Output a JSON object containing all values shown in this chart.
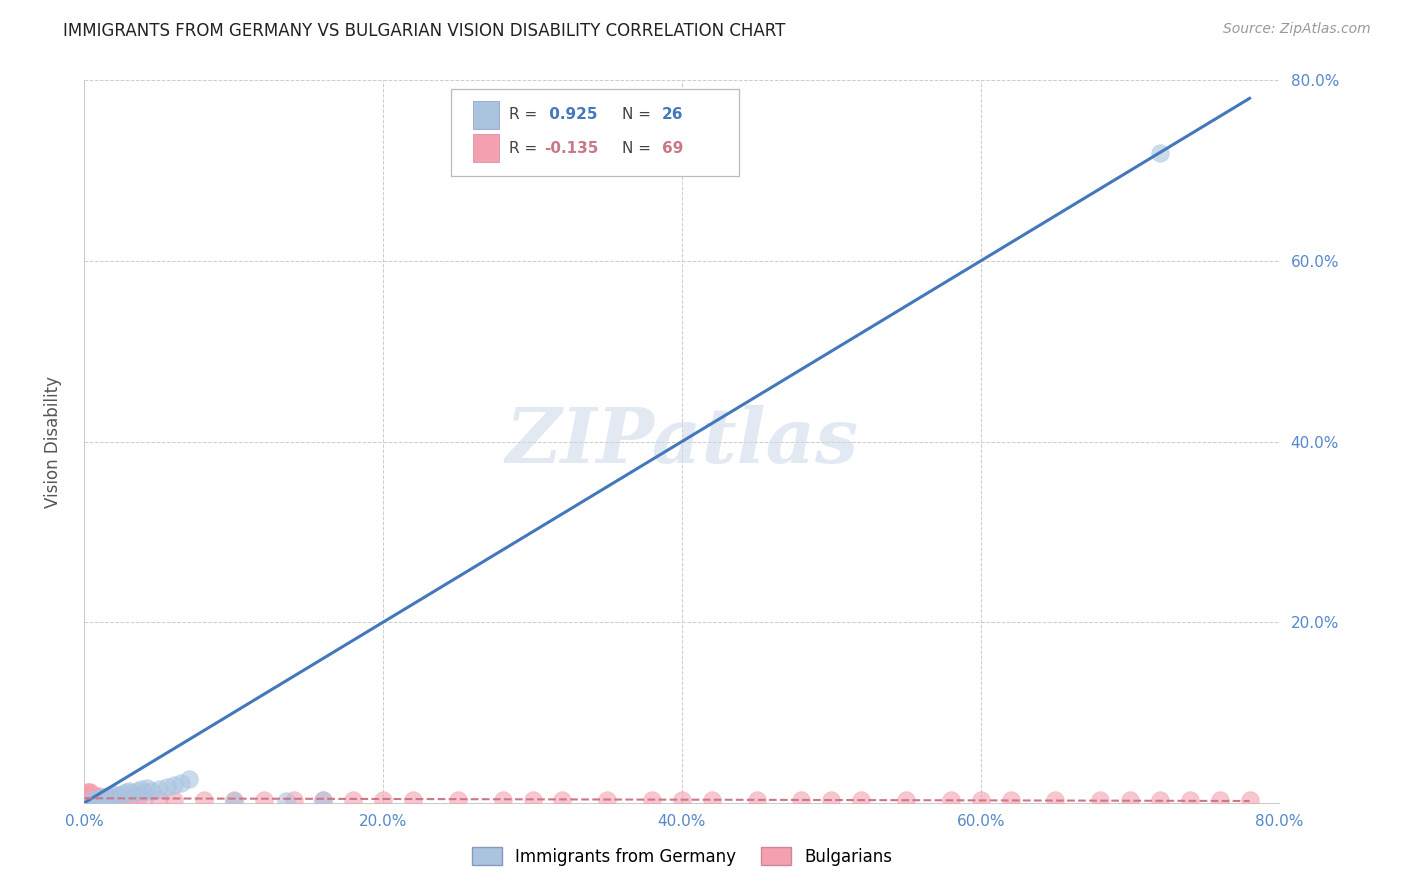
{
  "title": "IMMIGRANTS FROM GERMANY VS BULGARIAN VISION DISABILITY CORRELATION CHART",
  "source": "Source: ZipAtlas.com",
  "ylabel": "Vision Disability",
  "xlim": [
    0.0,
    0.8
  ],
  "ylim": [
    0.0,
    0.8
  ],
  "xticks": [
    0.0,
    0.2,
    0.4,
    0.6,
    0.8
  ],
  "yticks": [
    0.0,
    0.2,
    0.4,
    0.6,
    0.8
  ],
  "xtick_labels": [
    "0.0%",
    "20.0%",
    "40.0%",
    "60.0%",
    "80.0%"
  ],
  "ytick_labels": [
    "",
    "20.0%",
    "40.0%",
    "60.0%",
    "80.0%"
  ],
  "grid_color": "#cccccc",
  "background_color": "#ffffff",
  "blue_color": "#aac4e0",
  "pink_color": "#f4a0b0",
  "trendline_blue": "#4477bb",
  "trendline_pink": "#cc7788",
  "tick_color": "#5588cc",
  "watermark": "ZIPatlas",
  "scatter_blue": [
    [
      0.005,
      0.003
    ],
    [
      0.008,
      0.003
    ],
    [
      0.01,
      0.005
    ],
    [
      0.012,
      0.005
    ],
    [
      0.015,
      0.007
    ],
    [
      0.018,
      0.008
    ],
    [
      0.02,
      0.01
    ],
    [
      0.022,
      0.008
    ],
    [
      0.025,
      0.01
    ],
    [
      0.028,
      0.012
    ],
    [
      0.03,
      0.013
    ],
    [
      0.032,
      0.011
    ],
    [
      0.035,
      0.013
    ],
    [
      0.038,
      0.015
    ],
    [
      0.04,
      0.012
    ],
    [
      0.042,
      0.016
    ],
    [
      0.045,
      0.013
    ],
    [
      0.05,
      0.015
    ],
    [
      0.055,
      0.018
    ],
    [
      0.06,
      0.02
    ],
    [
      0.065,
      0.022
    ],
    [
      0.07,
      0.026
    ],
    [
      0.1,
      0.002
    ],
    [
      0.135,
      0.002
    ],
    [
      0.16,
      0.003
    ],
    [
      0.72,
      0.72
    ]
  ],
  "scatter_pink": [
    [
      0.001,
      0.005
    ],
    [
      0.002,
      0.006
    ],
    [
      0.002,
      0.008
    ],
    [
      0.003,
      0.005
    ],
    [
      0.003,
      0.007
    ],
    [
      0.003,
      0.009
    ],
    [
      0.004,
      0.005
    ],
    [
      0.004,
      0.007
    ],
    [
      0.004,
      0.01
    ],
    [
      0.005,
      0.005
    ],
    [
      0.005,
      0.007
    ],
    [
      0.005,
      0.009
    ],
    [
      0.006,
      0.005
    ],
    [
      0.006,
      0.007
    ],
    [
      0.007,
      0.005
    ],
    [
      0.007,
      0.008
    ],
    [
      0.008,
      0.005
    ],
    [
      0.008,
      0.007
    ],
    [
      0.009,
      0.005
    ],
    [
      0.01,
      0.005
    ],
    [
      0.01,
      0.007
    ],
    [
      0.011,
      0.005
    ],
    [
      0.012,
      0.005
    ],
    [
      0.013,
      0.005
    ],
    [
      0.015,
      0.005
    ],
    [
      0.018,
      0.005
    ],
    [
      0.02,
      0.005
    ],
    [
      0.022,
      0.004
    ],
    [
      0.025,
      0.004
    ],
    [
      0.03,
      0.004
    ],
    [
      0.035,
      0.004
    ],
    [
      0.04,
      0.004
    ],
    [
      0.05,
      0.004
    ],
    [
      0.06,
      0.003
    ],
    [
      0.08,
      0.003
    ],
    [
      0.1,
      0.003
    ],
    [
      0.12,
      0.003
    ],
    [
      0.14,
      0.003
    ],
    [
      0.16,
      0.003
    ],
    [
      0.18,
      0.003
    ],
    [
      0.2,
      0.003
    ],
    [
      0.22,
      0.003
    ],
    [
      0.25,
      0.003
    ],
    [
      0.28,
      0.003
    ],
    [
      0.3,
      0.003
    ],
    [
      0.32,
      0.003
    ],
    [
      0.35,
      0.003
    ],
    [
      0.38,
      0.003
    ],
    [
      0.4,
      0.003
    ],
    [
      0.42,
      0.003
    ],
    [
      0.45,
      0.003
    ],
    [
      0.48,
      0.003
    ],
    [
      0.5,
      0.003
    ],
    [
      0.52,
      0.003
    ],
    [
      0.55,
      0.003
    ],
    [
      0.58,
      0.003
    ],
    [
      0.6,
      0.003
    ],
    [
      0.62,
      0.003
    ],
    [
      0.65,
      0.003
    ],
    [
      0.68,
      0.003
    ],
    [
      0.7,
      0.003
    ],
    [
      0.72,
      0.003
    ],
    [
      0.74,
      0.003
    ],
    [
      0.76,
      0.003
    ],
    [
      0.78,
      0.003
    ],
    [
      0.0,
      0.005
    ],
    [
      0.001,
      0.01
    ],
    [
      0.002,
      0.012
    ],
    [
      0.003,
      0.012
    ],
    [
      0.004,
      0.012
    ]
  ],
  "blue_trendline_x": [
    0.0,
    0.78
  ],
  "blue_trendline_y": [
    0.0,
    0.78
  ],
  "pink_trendline_x": [
    0.0,
    0.78
  ],
  "pink_trendline_y": [
    0.005,
    0.002
  ]
}
